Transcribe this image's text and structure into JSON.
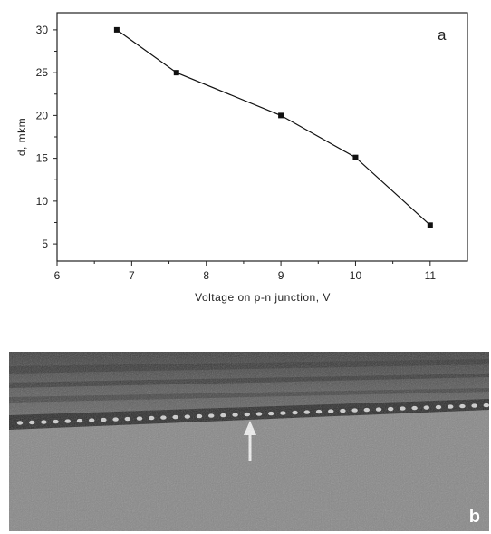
{
  "chart_data": {
    "type": "line",
    "panel_label": "a",
    "xlabel": "Voltage on p-n junction, V",
    "ylabel": "d, mkm",
    "xlim": [
      6,
      11.5
    ],
    "ylim": [
      3,
      32
    ],
    "xticks": [
      6,
      7,
      8,
      9,
      10,
      11
    ],
    "yticks": [
      5,
      10,
      15,
      20,
      25,
      30
    ],
    "grid": false,
    "series": [
      {
        "x": [
          6.8,
          7.6,
          9.0,
          10.0,
          11.0
        ],
        "y": [
          30,
          25,
          20,
          15.1,
          7.2
        ],
        "marker": "square",
        "color": "#111111"
      }
    ]
  },
  "photo": {
    "panel_label": "b"
  }
}
